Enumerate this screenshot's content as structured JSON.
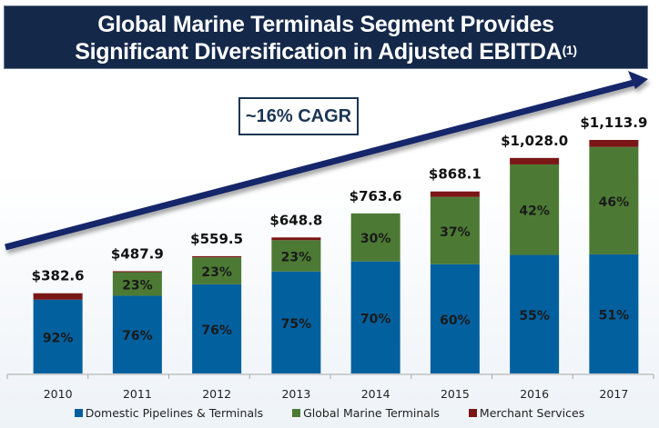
{
  "title": {
    "line1": "Global Marine Terminals Segment Provides",
    "line2": "Significant Diversification in Adjusted EBITDA",
    "footnote_marker": "(1)"
  },
  "cagr_label": "~16% CAGR",
  "colors": {
    "banner": "#14284a",
    "domestic": "#02609f",
    "global_marine": "#4c7a34",
    "merchant": "#7a1616",
    "arrow": "#14286a"
  },
  "chart_data": {
    "type": "bar",
    "stacked": true,
    "title": "Global Marine Terminals Segment Provides Significant Diversification in Adjusted EBITDA(1)",
    "xlabel": "",
    "ylabel": "",
    "ylim": [
      0,
      1200
    ],
    "grid": false,
    "legend_position": "bottom",
    "categories": [
      "2010",
      "2011",
      "2012",
      "2013",
      "2014",
      "2015",
      "2016",
      "2017"
    ],
    "totals": [
      382.6,
      487.9,
      559.5,
      648.8,
      763.6,
      868.1,
      1028.0,
      1113.9
    ],
    "total_labels": [
      "$382.6",
      "$487.9",
      "$559.5",
      "$648.8",
      "$763.6",
      "$868.1",
      "$1,028.0",
      "$1,113.9"
    ],
    "series": [
      {
        "name": "Domestic Pipelines & Terminals",
        "percent": [
          92,
          76,
          76,
          75,
          70,
          60,
          55,
          51
        ],
        "labels": [
          "92%",
          "76%",
          "76%",
          "75%",
          "70%",
          "60%",
          "55%",
          "51%"
        ]
      },
      {
        "name": "Global Marine Terminals",
        "percent": [
          0,
          23,
          23,
          23,
          30,
          37,
          42,
          46
        ],
        "labels": [
          "",
          "23%",
          "23%",
          "23%",
          "30%",
          "37%",
          "42%",
          "46%"
        ]
      },
      {
        "name": "Merchant Services",
        "percent": [
          8,
          1,
          1,
          2,
          0,
          3,
          3,
          3
        ],
        "labels": [
          "",
          "",
          "",
          "",
          "",
          "",
          "",
          ""
        ]
      }
    ],
    "annotations": [
      "~16% CAGR"
    ]
  },
  "legend": [
    {
      "label": "Domestic Pipelines & Terminals",
      "color": "#02609f"
    },
    {
      "label": "Global Marine Terminals",
      "color": "#4c7a34"
    },
    {
      "label": "Merchant Services",
      "color": "#7a1616"
    }
  ]
}
